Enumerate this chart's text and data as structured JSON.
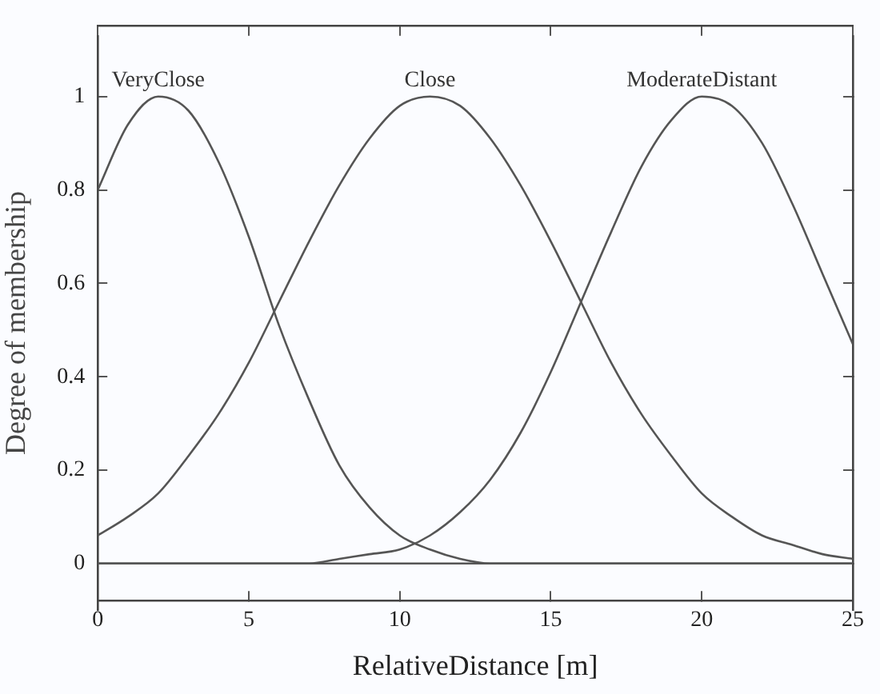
{
  "chart_data": {
    "type": "line",
    "xlabel": "RelativeDistance [m]",
    "ylabel": "Degree of membership",
    "x": [
      0,
      1,
      2,
      3,
      4,
      5,
      6,
      7,
      8,
      9,
      10,
      11,
      12,
      13,
      14,
      15,
      16,
      17,
      18,
      19,
      20,
      21,
      22,
      23,
      24,
      25
    ],
    "series": [
      {
        "name": "VeryClose",
        "color": "#555555",
        "values": [
          0.8,
          0.94,
          1.0,
          0.97,
          0.86,
          0.7,
          0.51,
          0.35,
          0.21,
          0.12,
          0.06,
          0.03,
          0.01,
          0,
          0,
          0,
          0,
          0,
          0,
          0,
          0,
          0,
          0,
          0,
          0,
          0
        ]
      },
      {
        "name": "Close",
        "color": "#555555",
        "values": [
          0.06,
          0.1,
          0.15,
          0.23,
          0.32,
          0.43,
          0.56,
          0.69,
          0.81,
          0.91,
          0.98,
          1.0,
          0.98,
          0.91,
          0.81,
          0.69,
          0.56,
          0.43,
          0.32,
          0.23,
          0.15,
          0.1,
          0.06,
          0.04,
          0.02,
          0.01
        ]
      },
      {
        "name": "ModerateDistant",
        "color": "#555555",
        "values": [
          0,
          0,
          0,
          0,
          0,
          0,
          0,
          0,
          0.01,
          0.02,
          0.03,
          0.06,
          0.11,
          0.18,
          0.28,
          0.41,
          0.56,
          0.71,
          0.85,
          0.95,
          1.0,
          0.98,
          0.9,
          0.77,
          0.62,
          0.47
        ]
      }
    ],
    "xlim": [
      0,
      25
    ],
    "xticks": [
      0,
      5,
      10,
      15,
      20,
      25
    ],
    "ylim": [
      -0.1,
      1.13
    ],
    "yticks": [
      0,
      0.2,
      0.4,
      0.6,
      0.8,
      1
    ],
    "ref_lines": [
      {
        "axis": "y",
        "value": 0,
        "color": "#555555"
      }
    ],
    "grid": false,
    "legend": false
  }
}
